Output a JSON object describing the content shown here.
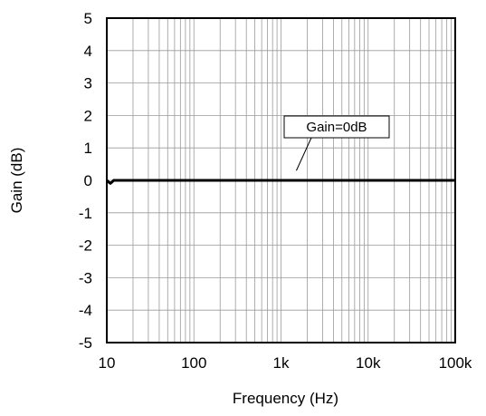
{
  "chart_data": {
    "type": "line",
    "xlabel": "Frequency (Hz)",
    "ylabel": "Gain (dB)",
    "x_scale": "log",
    "xlim": [
      10,
      100000
    ],
    "ylim": [
      -5,
      5
    ],
    "x_ticks": [
      {
        "value": 10,
        "label": "10"
      },
      {
        "value": 100,
        "label": "100"
      },
      {
        "value": 1000,
        "label": "1k"
      },
      {
        "value": 10000,
        "label": "10k"
      },
      {
        "value": 100000,
        "label": "100k"
      }
    ],
    "y_ticks": [
      5,
      4,
      3,
      2,
      1,
      0,
      -1,
      -2,
      -3,
      -4,
      -5
    ],
    "grid": true,
    "series": [
      {
        "color": "#000000",
        "x": [
          10,
          10.5,
          11,
          11.5,
          12,
          100,
          1000,
          10000,
          100000
        ],
        "y": [
          0,
          -0.05,
          -0.09,
          -0.05,
          0,
          0,
          0,
          0,
          0
        ]
      }
    ],
    "annotation": {
      "text": "Gain=0dB",
      "x": 1500,
      "y": 0.3
    }
  }
}
